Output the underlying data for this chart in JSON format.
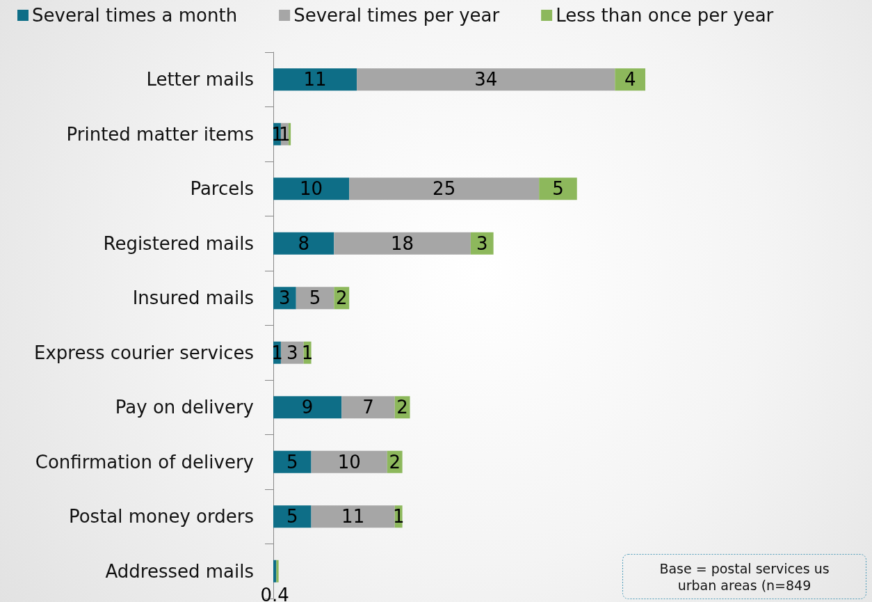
{
  "chart_data": {
    "type": "bar",
    "orientation": "horizontal",
    "stacked": true,
    "legend": "top left",
    "categories": [
      "Letter mails",
      "Printed matter items",
      "Parcels",
      "Registered mails",
      "Insured mails",
      "Express courier services",
      "Pay on delivery",
      "Confirmation of delivery",
      "Postal money orders",
      "Addressed mails"
    ],
    "series": [
      {
        "name": "Several times a month",
        "color": "#0e6e87",
        "values": [
          11,
          1,
          10,
          8,
          3,
          1,
          9,
          5,
          5,
          0.4
        ],
        "value_labels": [
          "11",
          "1",
          "10",
          "8",
          "3",
          "1",
          "9",
          "5",
          "5",
          "0.4"
        ]
      },
      {
        "name": "Several times per year",
        "color": "#a6a6a6",
        "values": [
          34,
          1,
          25,
          18,
          5,
          3,
          7,
          10,
          11,
          0
        ],
        "value_labels": [
          "34",
          "1",
          "25",
          "18",
          "5",
          "3",
          "7",
          "10",
          "11",
          null
        ]
      },
      {
        "name": "Less than once per year",
        "color": "#8db85c",
        "values": [
          4,
          0.3,
          5,
          3,
          2,
          1,
          2,
          2,
          1,
          0.3
        ],
        "value_labels": [
          "4",
          null,
          "5",
          "3",
          "2",
          "1",
          "2",
          "2",
          "1",
          null
        ]
      }
    ],
    "annotations": [
      "Base = postal services us\nurban areas (n=849"
    ]
  }
}
